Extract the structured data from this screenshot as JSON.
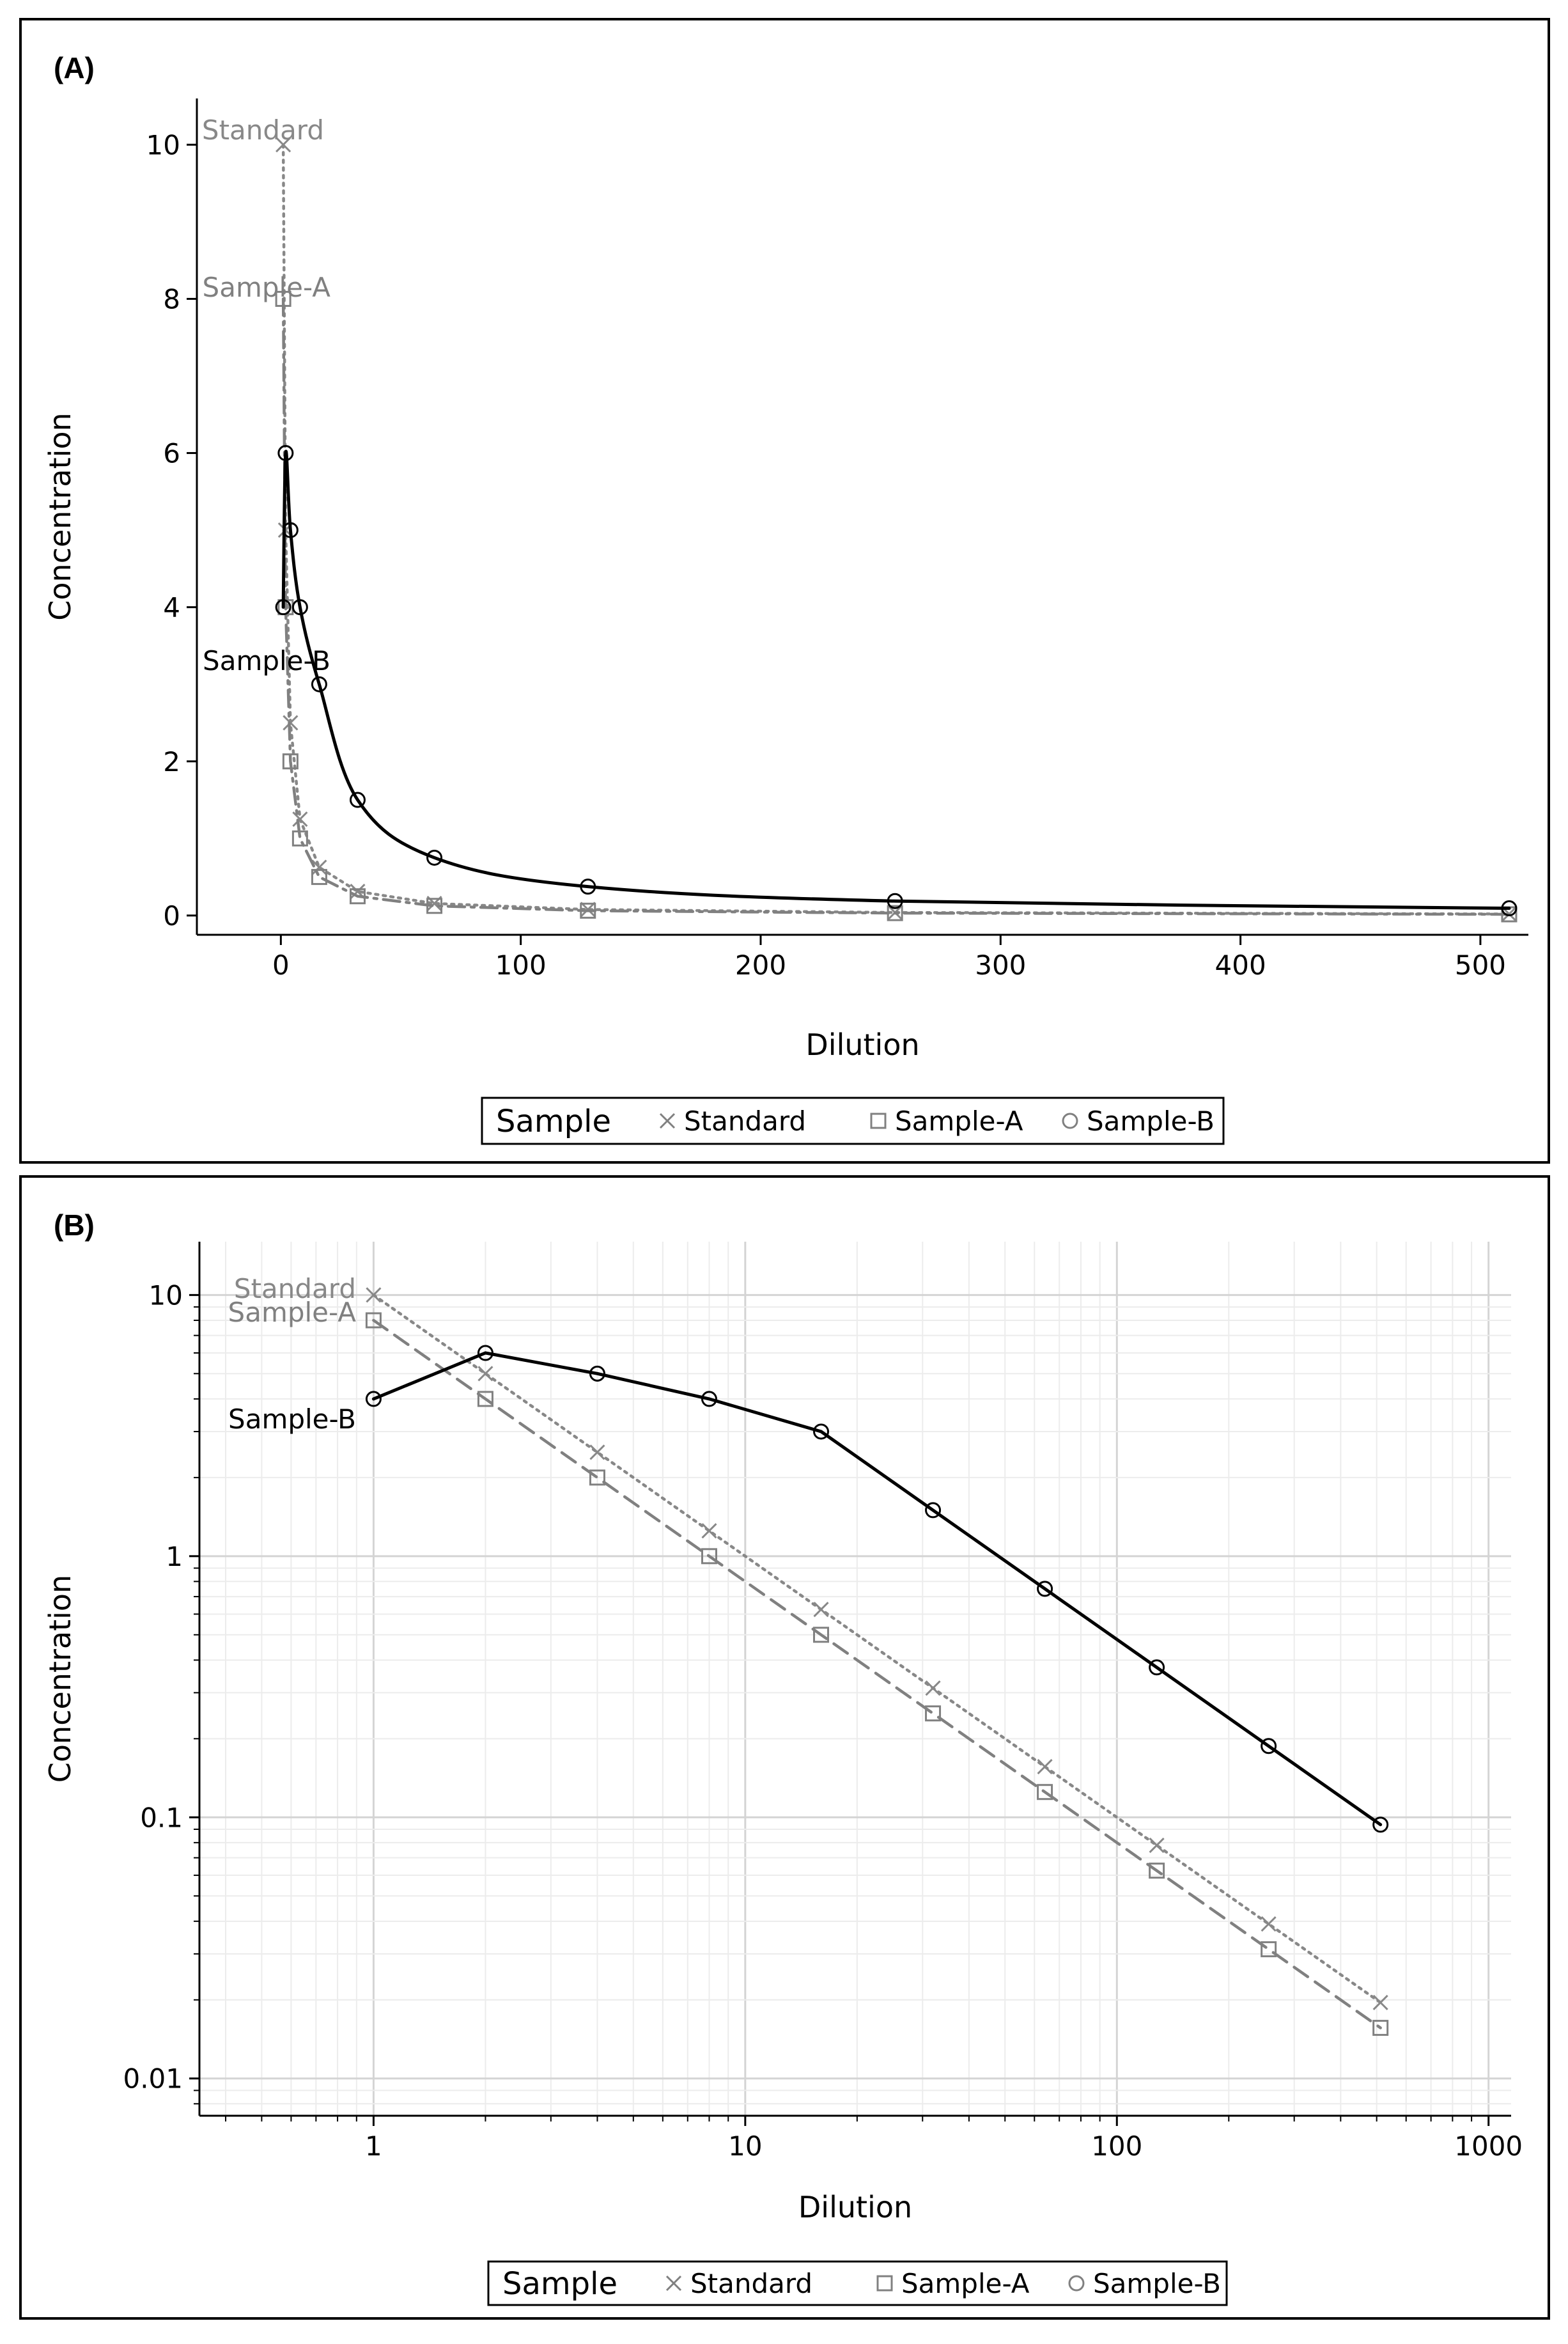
{
  "chart_data": [
    {
      "panel_label": "(A)",
      "type": "line",
      "x_scale": "linear",
      "y_scale": "linear",
      "xlabel": "Dilution",
      "ylabel": "Concentration",
      "xlim": [
        -35,
        520
      ],
      "ylim": [
        -0.25,
        10.6
      ],
      "x_ticks": [
        0,
        100,
        200,
        300,
        400,
        500
      ],
      "x_tick_labels": [
        "0",
        "100",
        "200",
        "300",
        "400",
        "500"
      ],
      "y_ticks": [
        0,
        2,
        4,
        6,
        8,
        10
      ],
      "y_tick_labels": [
        "0",
        "2",
        "4",
        "6",
        "8",
        "10"
      ],
      "grid": false,
      "legend_title": "Sample",
      "legend_position": "bottom",
      "x": [
        1,
        2,
        4,
        8,
        16,
        32,
        64,
        128,
        256,
        512
      ],
      "series": [
        {
          "name": "Standard",
          "marker": "x",
          "line": "dotted",
          "color": "#888888",
          "text_color": "#888888",
          "values": [
            10,
            5,
            2.5,
            1.25,
            0.625,
            0.3125,
            0.15625,
            0.078125,
            0.0390625,
            0.01953125
          ]
        },
        {
          "name": "Sample-A",
          "marker": "square",
          "line": "dashdot",
          "color": "#808080",
          "text_color": "#808080",
          "values": [
            8,
            4,
            2,
            1,
            0.5,
            0.25,
            0.125,
            0.0625,
            0.03125,
            0.015625
          ]
        },
        {
          "name": "Sample-B",
          "marker": "circle",
          "line": "solid",
          "color": "#000000",
          "text_color": "#000000",
          "values": [
            4,
            6,
            5,
            4,
            3,
            1.5,
            0.75,
            0.375,
            0.1875,
            0.09375
          ]
        }
      ],
      "curve_labels": [
        "Standard",
        "Sample-A",
        "Sample-B"
      ]
    },
    {
      "panel_label": "(B)",
      "type": "line",
      "x_scale": "log",
      "y_scale": "log",
      "xlabel": "Dilution",
      "ylabel": "Concentration",
      "xlim": [
        0.34,
        1150
      ],
      "ylim": [
        0.0072,
        16
      ],
      "x_ticks": [
        1,
        10,
        100,
        1000
      ],
      "x_tick_labels": [
        "1",
        "10",
        "100",
        "1000"
      ],
      "y_ticks": [
        0.01,
        0.1,
        1,
        10
      ],
      "y_tick_labels": [
        "0.01",
        "0.1",
        "1",
        "10"
      ],
      "grid": true,
      "legend_title": "Sample",
      "legend_position": "bottom",
      "x": [
        1,
        2,
        4,
        8,
        16,
        32,
        64,
        128,
        256,
        512
      ],
      "series": [
        {
          "name": "Standard",
          "marker": "x",
          "line": "dotted",
          "color": "#888888",
          "text_color": "#888888",
          "values": [
            10,
            5,
            2.5,
            1.25,
            0.625,
            0.3125,
            0.15625,
            0.078125,
            0.0390625,
            0.01953125
          ]
        },
        {
          "name": "Sample-A",
          "marker": "square",
          "line": "dashed",
          "color": "#808080",
          "text_color": "#808080",
          "values": [
            8,
            4,
            2,
            1,
            0.5,
            0.25,
            0.125,
            0.0625,
            0.03125,
            0.015625
          ]
        },
        {
          "name": "Sample-B",
          "marker": "circle",
          "line": "solid",
          "color": "#000000",
          "text_color": "#000000",
          "values": [
            4,
            6,
            5,
            4,
            3,
            1.5,
            0.75,
            0.375,
            0.1875,
            0.09375
          ]
        }
      ],
      "curve_labels": [
        "Standard",
        "Sample-A",
        "Sample-B"
      ]
    }
  ]
}
